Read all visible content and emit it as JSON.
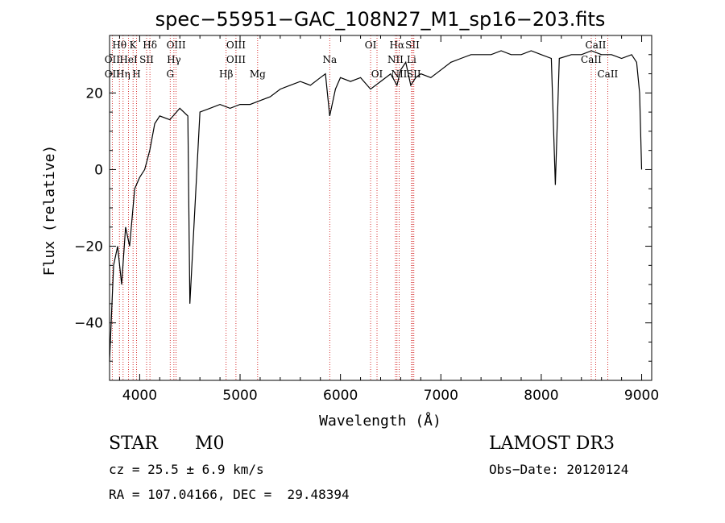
{
  "chart_data": {
    "type": "line",
    "title": "spec−55951−GAC_108N27_M1_sp16−203.fits",
    "xlabel": "Wavelength (Å)",
    "ylabel": "Flux (relative)",
    "xlim": [
      3700,
      9100
    ],
    "ylim": [
      -55,
      35
    ],
    "xticks": [
      4000,
      5000,
      6000,
      7000,
      8000,
      9000
    ],
    "yticks": [
      -40,
      -20,
      0,
      20
    ],
    "series": [
      {
        "name": "spectrum",
        "x": [
          3700,
          3740,
          3780,
          3820,
          3860,
          3900,
          3950,
          4000,
          4050,
          4100,
          4150,
          4200,
          4300,
          4400,
          4480,
          4500,
          4600,
          4700,
          4800,
          4900,
          5000,
          5100,
          5200,
          5300,
          5400,
          5500,
          5600,
          5700,
          5800,
          5850,
          5893,
          5950,
          6000,
          6100,
          6200,
          6300,
          6400,
          6500,
          6563,
          6600,
          6650,
          6700,
          6750,
          6800,
          6900,
          7000,
          7100,
          7200,
          7300,
          7400,
          7500,
          7600,
          7700,
          7800,
          7900,
          8000,
          8100,
          8140,
          8180,
          8300,
          8400,
          8500,
          8600,
          8700,
          8800,
          8900,
          8950,
          8980,
          9000
        ],
        "y": [
          -50,
          -25,
          -20,
          -30,
          -15,
          -20,
          -5,
          -2,
          0,
          5,
          12,
          14,
          13,
          16,
          14,
          -35,
          15,
          16,
          17,
          16,
          17,
          17,
          18,
          19,
          21,
          22,
          23,
          22,
          24,
          25,
          14,
          21,
          24,
          23,
          24,
          21,
          23,
          25,
          22,
          26,
          28,
          22,
          24,
          25,
          24,
          26,
          28,
          29,
          30,
          30,
          30,
          31,
          30,
          30,
          31,
          30,
          29,
          -4,
          29,
          30,
          30,
          31,
          30,
          30,
          29,
          30,
          28,
          20,
          0
        ]
      }
    ],
    "line_markers": {
      "row1": [
        {
          "label": "Hθ",
          "x": 3798
        },
        {
          "label": "K",
          "x": 3934
        },
        {
          "label": "Hδ",
          "x": 4102
        },
        {
          "label": "OIII",
          "x": 4363
        },
        {
          "label": "OIII",
          "x": 4959
        },
        {
          "label": "OI",
          "x": 6300
        },
        {
          "label": "Hα",
          "x": 6563
        },
        {
          "label": "SII",
          "x": 6717
        },
        {
          "label": "CaII",
          "x": 8542
        }
      ],
      "row2": [
        {
          "label": "OII",
          "x": 3727
        },
        {
          "label": "HeI",
          "x": 3889
        },
        {
          "label": "SII",
          "x": 4069
        },
        {
          "label": "Hγ",
          "x": 4341
        },
        {
          "label": "OIII",
          "x": 4959
        },
        {
          "label": "Na",
          "x": 5893
        },
        {
          "label": "NII",
          "x": 6548
        },
        {
          "label": "Li",
          "x": 6708
        },
        {
          "label": "CaII",
          "x": 8498
        }
      ],
      "row3": [
        {
          "label": "OII",
          "x": 3727
        },
        {
          "label": "Hη",
          "x": 3835
        },
        {
          "label": "H",
          "x": 3969
        },
        {
          "label": "G",
          "x": 4304
        },
        {
          "label": "Hβ",
          "x": 4861
        },
        {
          "label": "Mg",
          "x": 5175
        },
        {
          "label": "OI",
          "x": 6364
        },
        {
          "label": "NII",
          "x": 6584
        },
        {
          "label": "SII",
          "x": 6731
        },
        {
          "label": "CaII",
          "x": 8662
        }
      ]
    }
  },
  "info": {
    "class": "STAR",
    "subclass": "M0",
    "survey": "LAMOST DR3",
    "cz": "cz = 25.5 ± 6.9 km/s",
    "obs_date": "Obs−Date: 20120124",
    "coords": "RA = 107.04166, DEC =  29.48394"
  }
}
